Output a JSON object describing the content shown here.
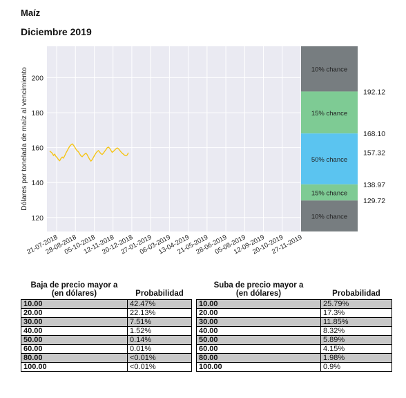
{
  "header": {
    "commodity": "Maíz",
    "contract": "Diciembre 2019"
  },
  "chart_data": {
    "type": "line",
    "ylabel": "Dólares por tonelada de maíz al vencimiento",
    "ylim": [
      112,
      218
    ],
    "yticks": [
      120,
      140,
      160,
      180,
      200
    ],
    "grid": true,
    "x_ticks": [
      "21-07-2018",
      "28-08-2018",
      "05-10-2018",
      "12-11-2018",
      "20-12-2018",
      "27-01-2019",
      "06-03-2019",
      "13-04-2019",
      "21-05-2019",
      "28-06-2019",
      "05-08-2019",
      "12-09-2019",
      "20-10-2019",
      "27-11-2019"
    ],
    "series": [
      {
        "color": "#f5c518",
        "values": [
          158,
          157.5,
          156.8,
          155.5,
          156.2,
          155,
          154.2,
          153.1,
          152.5,
          153.8,
          154.6,
          154,
          155.3,
          156.9,
          158.2,
          159.5,
          160.8,
          161.6,
          162.1,
          161.4,
          160.3,
          159.1,
          158.2,
          157.6,
          156.4,
          155.3,
          154.8,
          155.6,
          156.3,
          156.8,
          155.9,
          154.5,
          153.2,
          152.3,
          153.1,
          154.4,
          155.7,
          156.9,
          157.8,
          158.3,
          157.4,
          156.5,
          156.1,
          156.8,
          157.9,
          158.8,
          159.9,
          160.3,
          159.6,
          158.4,
          157.3,
          157.9,
          158.6,
          159.3,
          159.8,
          159.4,
          158.5,
          157.6,
          156.8,
          156.2,
          155.6,
          155.3,
          155.8,
          157.1
        ]
      }
    ],
    "bands": [
      {
        "label": "10% chance",
        "from": 192.12,
        "to": 218,
        "color": "#777d80"
      },
      {
        "label": "15% chance",
        "from": 168.1,
        "to": 192.12,
        "color": "#7ecb94"
      },
      {
        "label": "50% chance",
        "from": 138.97,
        "to": 168.1,
        "color": "#5bc4f0"
      },
      {
        "label": "15% chance",
        "from": 129.72,
        "to": 138.97,
        "color": "#7ecb94"
      },
      {
        "label": "10% chance",
        "from": 112,
        "to": 129.72,
        "color": "#777d80"
      }
    ],
    "band_levels": [
      {
        "value": 192.12,
        "label": "192.12"
      },
      {
        "value": 168.1,
        "label": "168.10"
      },
      {
        "value": 157.32,
        "label": "157.32"
      },
      {
        "value": 138.97,
        "label": "138.97"
      },
      {
        "value": 129.72,
        "label": "129.72"
      }
    ]
  },
  "tables": {
    "down": {
      "header1": "Baja de precio mayor a",
      "header1b": "(en dólares)",
      "header2": "Probabilidad",
      "rows": [
        [
          "10.00",
          "42.47%"
        ],
        [
          "20.00",
          "22.13%"
        ],
        [
          "30.00",
          "7.51%"
        ],
        [
          "40.00",
          "1.52%"
        ],
        [
          "50.00",
          "0.14%"
        ],
        [
          "60.00",
          "0.01%"
        ],
        [
          "80.00",
          "<0.01%"
        ],
        [
          "100.00",
          "<0.01%"
        ]
      ]
    },
    "up": {
      "header1": "Suba de precio mayor a",
      "header1b": "(en dólares)",
      "header2": "Probabilidad",
      "rows": [
        [
          "10.00",
          "25.79%"
        ],
        [
          "20.00",
          "17.3%"
        ],
        [
          "30.00",
          "11.85%"
        ],
        [
          "40.00",
          "8.32%"
        ],
        [
          "50.00",
          "5.89%"
        ],
        [
          "60.00",
          "4.15%"
        ],
        [
          "80.00",
          "1.98%"
        ],
        [
          "100.00",
          "0.9%"
        ]
      ]
    }
  }
}
